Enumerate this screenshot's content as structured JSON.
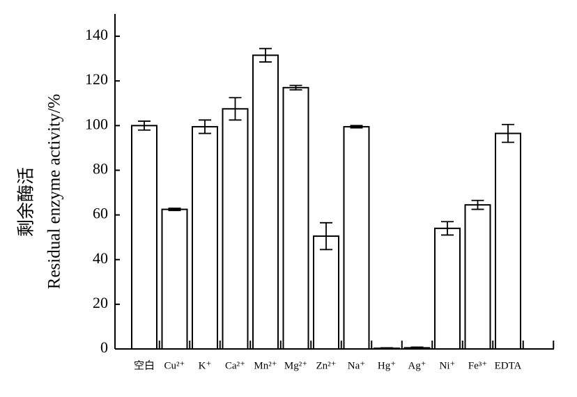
{
  "chart_data": {
    "type": "bar",
    "y_label_cn": "剩余酶活",
    "y_label": "Residual enzyme activity/%",
    "categories": [
      "空白",
      "Cu²⁺",
      "K⁺",
      "Ca²⁺",
      "Mn²⁺",
      "Mg²⁺",
      "Zn²⁺",
      "Na⁺",
      "Hg⁺",
      "Ag⁺",
      "Ni⁺",
      "Fe³⁺",
      "EDTA"
    ],
    "values": [
      100,
      62.5,
      99.5,
      107.5,
      131.5,
      117,
      50.5,
      99.5,
      0.3,
      0.5,
      54,
      64.5,
      96.5
    ],
    "errors": [
      2,
      0.5,
      3,
      5,
      3,
      1,
      6,
      0.5,
      0.2,
      0.3,
      3,
      2,
      4
    ],
    "color": "#ffffff",
    "ylim": [
      0,
      150
    ],
    "yticks": [
      0,
      20,
      40,
      60,
      80,
      100,
      120,
      140
    ]
  }
}
